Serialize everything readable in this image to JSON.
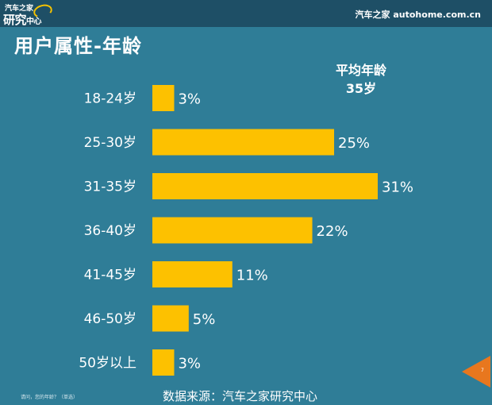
{
  "header": {
    "logo_line1": "汽车之家",
    "logo_line2_big": "研究",
    "logo_line2_small": "中心",
    "brand_right": "汽车之家 autohome.com.cn"
  },
  "page_title": "用户属性-年龄",
  "average": {
    "label": "平均年龄",
    "value": "35岁"
  },
  "chart_data": {
    "type": "bar",
    "orientation": "horizontal",
    "categories": [
      "18-24岁",
      "25-30岁",
      "31-35岁",
      "36-40岁",
      "41-45岁",
      "46-50岁",
      "50岁以上"
    ],
    "values": [
      3,
      25,
      31,
      22,
      11,
      5,
      3
    ],
    "value_labels": [
      "3%",
      "25%",
      "31%",
      "22%",
      "11%",
      "5%",
      "3%"
    ],
    "unit": "%",
    "bar_color": "#fdc100",
    "grid": false,
    "xlim": [
      0,
      31
    ]
  },
  "footer": {
    "note": "请问，您的年龄？（单选）",
    "source": "数据来源：汽车之家研究中心",
    "page_number": "7"
  },
  "colors": {
    "background": "#2f7d97",
    "topbar": "#1e4f66",
    "accent": "#e8771e"
  }
}
